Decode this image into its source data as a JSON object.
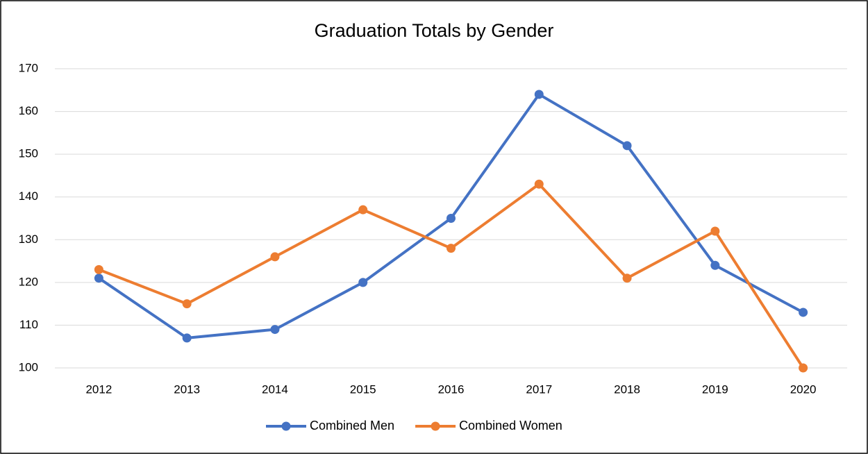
{
  "chart_data": {
    "type": "line",
    "title": "Graduation Totals by Gender",
    "categories": [
      "2012",
      "2013",
      "2014",
      "2015",
      "2016",
      "2017",
      "2018",
      "2019",
      "2020"
    ],
    "series": [
      {
        "name": "Combined Men",
        "color": "#4472c4",
        "values": [
          121,
          107,
          109,
          120,
          135,
          164,
          152,
          124,
          113
        ]
      },
      {
        "name": "Combined Women",
        "color": "#ed7d31",
        "values": [
          123,
          115,
          126,
          137,
          128,
          143,
          121,
          132,
          100
        ]
      }
    ],
    "ylim": [
      100,
      170
    ],
    "yticks": [
      100,
      110,
      120,
      130,
      140,
      150,
      160,
      170
    ],
    "grid": true,
    "legend": "bottom"
  }
}
